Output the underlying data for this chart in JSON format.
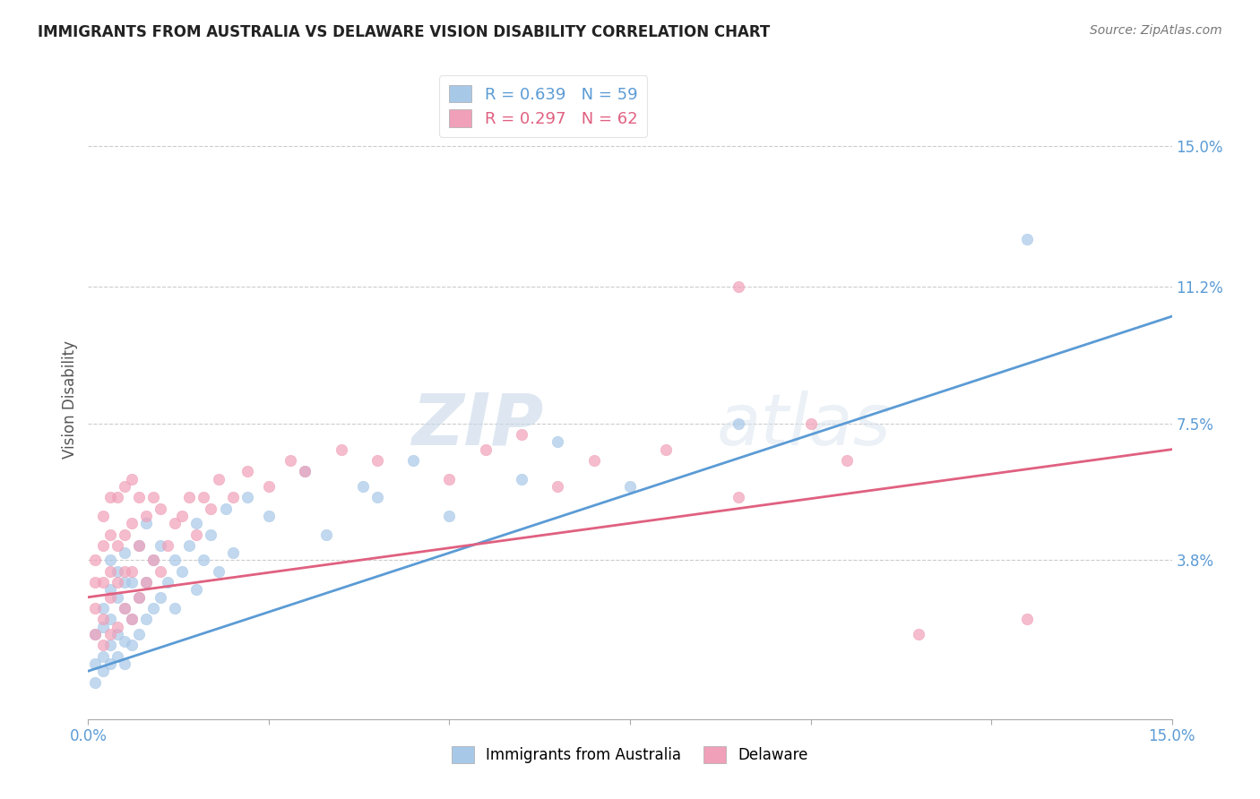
{
  "title": "IMMIGRANTS FROM AUSTRALIA VS DELAWARE VISION DISABILITY CORRELATION CHART",
  "source": "Source: ZipAtlas.com",
  "ylabel": "Vision Disability",
  "ytick_labels": [
    "3.8%",
    "7.5%",
    "11.2%",
    "15.0%"
  ],
  "ytick_values": [
    0.038,
    0.075,
    0.112,
    0.15
  ],
  "xmin": 0.0,
  "xmax": 0.15,
  "ymin": -0.005,
  "ymax": 0.168,
  "legend1_label": "R = 0.639   N = 59",
  "legend2_label": "R = 0.297   N = 62",
  "series1_color": "#a8c8e8",
  "series2_color": "#f0a0b8",
  "line1_color": "#5b9bd5",
  "line2_color": "#e06080",
  "watermark_zip": "#c0cfe0",
  "watermark_atlas": "#d0dce8",
  "line1_x0": 0.0,
  "line1_y0": 0.008,
  "line1_x1": 0.15,
  "line1_y1": 0.104,
  "line2_x0": 0.0,
  "line2_y0": 0.028,
  "line2_x1": 0.15,
  "line2_y1": 0.068,
  "blue_scatter_x": [
    0.001,
    0.001,
    0.001,
    0.002,
    0.002,
    0.002,
    0.002,
    0.003,
    0.003,
    0.003,
    0.003,
    0.003,
    0.004,
    0.004,
    0.004,
    0.004,
    0.005,
    0.005,
    0.005,
    0.005,
    0.005,
    0.006,
    0.006,
    0.006,
    0.007,
    0.007,
    0.007,
    0.008,
    0.008,
    0.008,
    0.009,
    0.009,
    0.01,
    0.01,
    0.011,
    0.012,
    0.012,
    0.013,
    0.014,
    0.015,
    0.015,
    0.016,
    0.017,
    0.018,
    0.019,
    0.02,
    0.022,
    0.025,
    0.03,
    0.033,
    0.038,
    0.04,
    0.045,
    0.05,
    0.06,
    0.065,
    0.075,
    0.09,
    0.13
  ],
  "blue_scatter_y": [
    0.005,
    0.01,
    0.018,
    0.008,
    0.012,
    0.02,
    0.025,
    0.01,
    0.015,
    0.022,
    0.03,
    0.038,
    0.012,
    0.018,
    0.028,
    0.035,
    0.01,
    0.016,
    0.025,
    0.032,
    0.04,
    0.015,
    0.022,
    0.032,
    0.018,
    0.028,
    0.042,
    0.022,
    0.032,
    0.048,
    0.025,
    0.038,
    0.028,
    0.042,
    0.032,
    0.025,
    0.038,
    0.035,
    0.042,
    0.03,
    0.048,
    0.038,
    0.045,
    0.035,
    0.052,
    0.04,
    0.055,
    0.05,
    0.062,
    0.045,
    0.058,
    0.055,
    0.065,
    0.05,
    0.06,
    0.07,
    0.058,
    0.075,
    0.125
  ],
  "pink_scatter_x": [
    0.001,
    0.001,
    0.001,
    0.001,
    0.002,
    0.002,
    0.002,
    0.002,
    0.002,
    0.003,
    0.003,
    0.003,
    0.003,
    0.003,
    0.004,
    0.004,
    0.004,
    0.004,
    0.005,
    0.005,
    0.005,
    0.005,
    0.006,
    0.006,
    0.006,
    0.006,
    0.007,
    0.007,
    0.007,
    0.008,
    0.008,
    0.009,
    0.009,
    0.01,
    0.01,
    0.011,
    0.012,
    0.013,
    0.014,
    0.015,
    0.016,
    0.017,
    0.018,
    0.02,
    0.022,
    0.025,
    0.028,
    0.03,
    0.035,
    0.04,
    0.05,
    0.055,
    0.06,
    0.065,
    0.07,
    0.08,
    0.09,
    0.1,
    0.105,
    0.09,
    0.115,
    0.13
  ],
  "pink_scatter_y": [
    0.018,
    0.025,
    0.032,
    0.038,
    0.015,
    0.022,
    0.032,
    0.042,
    0.05,
    0.018,
    0.028,
    0.035,
    0.045,
    0.055,
    0.02,
    0.032,
    0.042,
    0.055,
    0.025,
    0.035,
    0.045,
    0.058,
    0.022,
    0.035,
    0.048,
    0.06,
    0.028,
    0.042,
    0.055,
    0.032,
    0.05,
    0.038,
    0.055,
    0.035,
    0.052,
    0.042,
    0.048,
    0.05,
    0.055,
    0.045,
    0.055,
    0.052,
    0.06,
    0.055,
    0.062,
    0.058,
    0.065,
    0.062,
    0.068,
    0.065,
    0.06,
    0.068,
    0.072,
    0.058,
    0.065,
    0.068,
    0.055,
    0.075,
    0.065,
    0.112,
    0.018,
    0.022
  ]
}
